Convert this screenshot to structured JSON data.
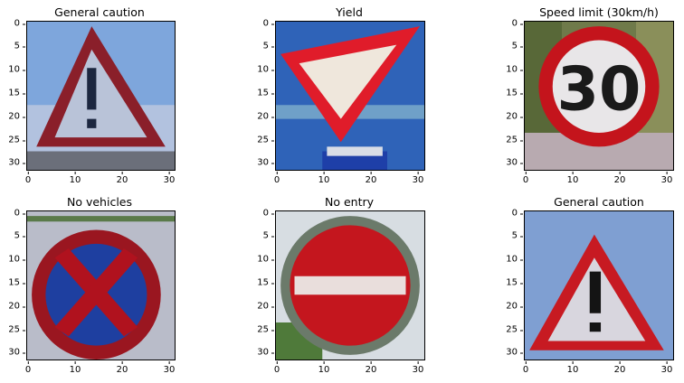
{
  "panels": [
    {
      "title": "General caution",
      "sign": "triangle-exclaim",
      "bg": "#7ea6dc"
    },
    {
      "title": "Yield",
      "sign": "yield",
      "bg": "#2f63b8"
    },
    {
      "title": "Speed limit (30km/h)",
      "sign": "speed30",
      "bg": "#6f7a4a"
    },
    {
      "title": "No vehicles",
      "sign": "novehicle",
      "bg": "#b9bcc9"
    },
    {
      "title": "No entry",
      "sign": "noentry",
      "bg": "#d7dde2"
    },
    {
      "title": "General caution",
      "sign": "triangle-exclaim-clean",
      "bg": "#7f9fd2"
    }
  ],
  "yticks": [
    "0",
    "5",
    "10",
    "15",
    "20",
    "25",
    "30"
  ],
  "xticks": [
    "0",
    "10",
    "20",
    "30"
  ],
  "speed_text": "30"
}
